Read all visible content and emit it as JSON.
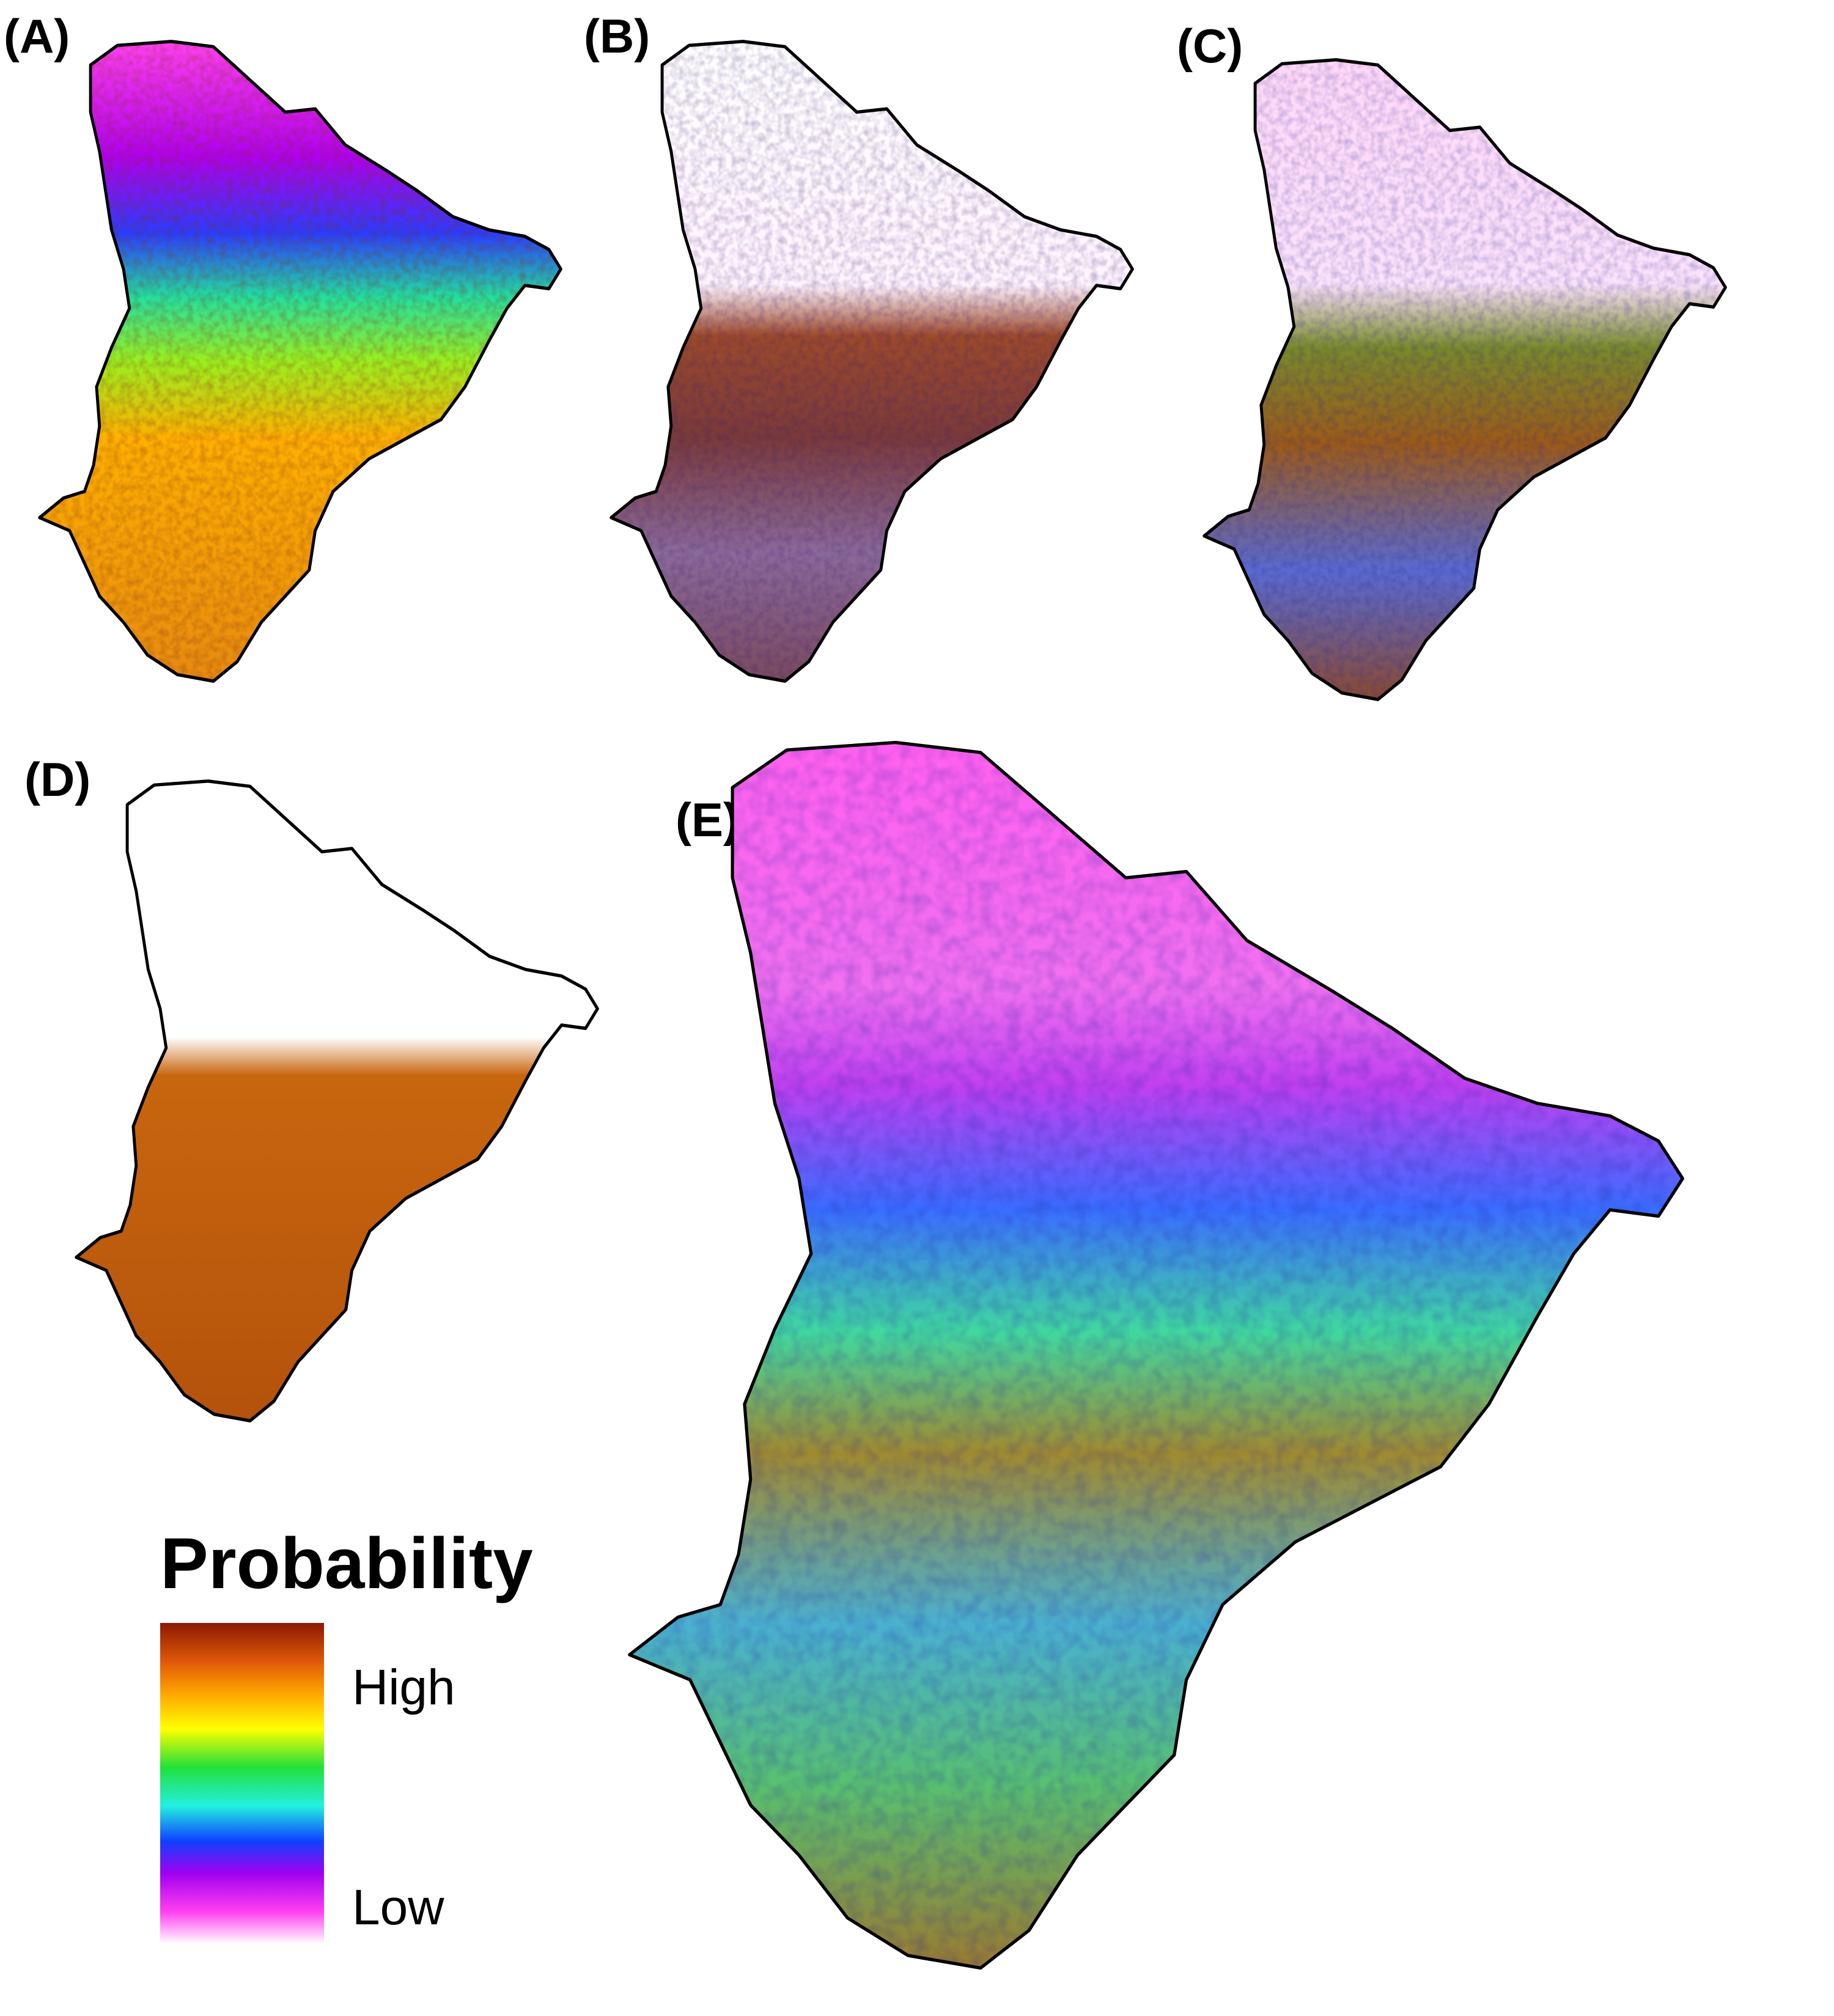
{
  "panels": [
    {
      "id": "A",
      "label": "(A)"
    },
    {
      "id": "B",
      "label": "(B)"
    },
    {
      "id": "C",
      "label": "(C)"
    },
    {
      "id": "D",
      "label": "(D)"
    },
    {
      "id": "E",
      "label": "(E)"
    }
  ],
  "legend": {
    "title": "Probability",
    "high_label": "High",
    "low_label": "Low",
    "color_stops": [
      "#8b1a00",
      "#e0580a",
      "#ffa500",
      "#ffff00",
      "#22e03a",
      "#22f0e0",
      "#1040ff",
      "#a000f0",
      "#ff40f0",
      "#ffffff"
    ]
  }
}
